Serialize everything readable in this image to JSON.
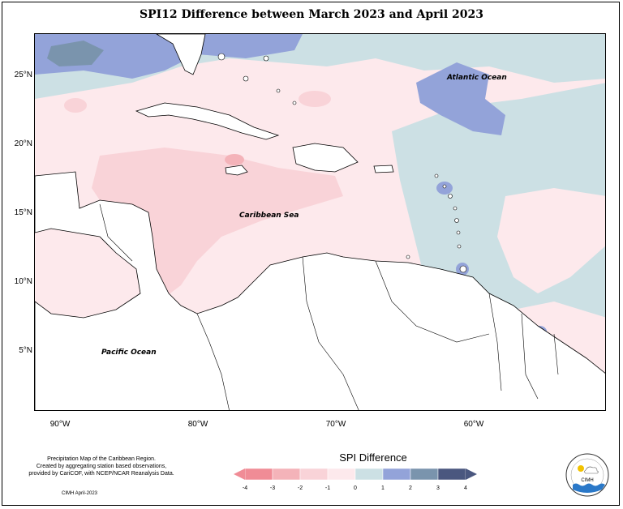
{
  "title": "SPI12 Difference between March 2023 and April 2023",
  "map": {
    "labels": {
      "atlantic": "Atlantic Ocean",
      "caribbean": "Caribbean Sea",
      "pacific": "Pacific Ocean"
    },
    "lat_ticks": [
      "25°N",
      "20°N",
      "15°N",
      "10°N",
      "5°N"
    ],
    "lon_ticks": [
      "90°W",
      "80°W",
      "70°W",
      "60°W"
    ],
    "extent": {
      "lon": [
        -92,
        -51
      ],
      "lat": [
        0.5,
        28
      ]
    }
  },
  "legend": {
    "title": "SPI Difference",
    "ticks": [
      "-4",
      "-3",
      "-2",
      "-1",
      "0",
      "1",
      "2",
      "3",
      "4"
    ],
    "colors": [
      "#f08c96",
      "#f4b3b9",
      "#f9d3d8",
      "#fde9ec",
      "#cce0e4",
      "#93a3d9",
      "#7a94ad",
      "#4a577f"
    ]
  },
  "notes": {
    "line1": "Precipitation Map of the Caribbean Region.",
    "line2": "Created by aggregating station based observations,",
    "line3": "provided by CariCOF, with NCEP/NCAR Reanalysis Data.",
    "credit": "CIMH April-2023"
  },
  "logo": {
    "text": "CIMH"
  }
}
